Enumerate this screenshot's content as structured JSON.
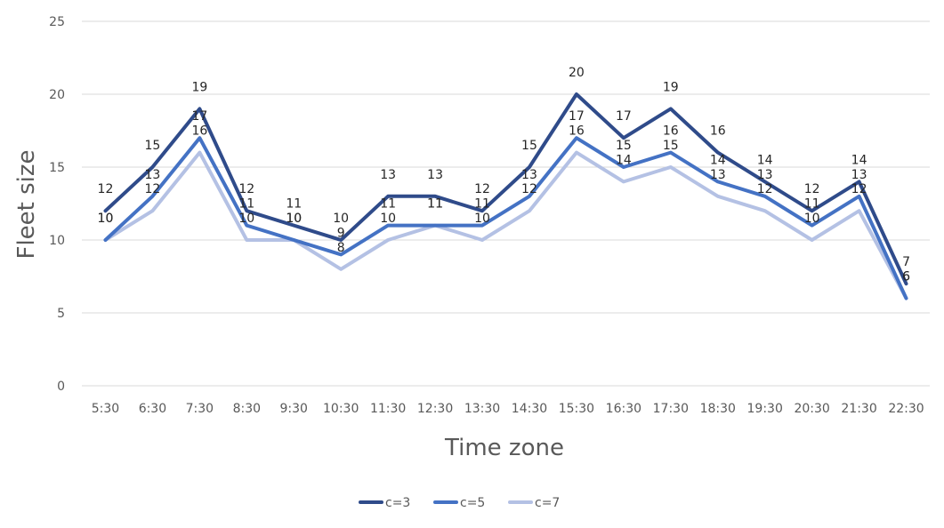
{
  "chart_data": {
    "type": "line",
    "categories": [
      "5:30",
      "6:30",
      "7:30",
      "8:30",
      "9:30",
      "10:30",
      "11:30",
      "12:30",
      "13:30",
      "14:30",
      "15:30",
      "16:30",
      "17:30",
      "18:30",
      "19:30",
      "20:30",
      "21:30",
      "22:30"
    ],
    "series": [
      {
        "name": "c=3",
        "color": "#2F4B8A",
        "values": [
          12,
          15,
          19,
          12,
          11,
          10,
          13,
          13,
          12,
          15,
          20,
          17,
          19,
          16,
          14,
          12,
          14,
          7
        ]
      },
      {
        "name": "c=5",
        "color": "#4472C4",
        "values": [
          10,
          13,
          17,
          11,
          10,
          9,
          11,
          11,
          11,
          13,
          17,
          15,
          16,
          14,
          13,
          11,
          13,
          6
        ]
      },
      {
        "name": "c=7",
        "color": "#B4C1E4",
        "values": [
          10,
          12,
          16,
          10,
          10,
          8,
          10,
          11,
          10,
          12,
          16,
          14,
          15,
          13,
          12,
          10,
          12,
          6
        ]
      }
    ],
    "xlabel": "Time zone",
    "ylabel": "Fleet size",
    "ylim": [
      0,
      25
    ],
    "yticks": [
      0,
      5,
      10,
      15,
      20,
      25
    ],
    "grid": true,
    "legend": "bottom"
  }
}
